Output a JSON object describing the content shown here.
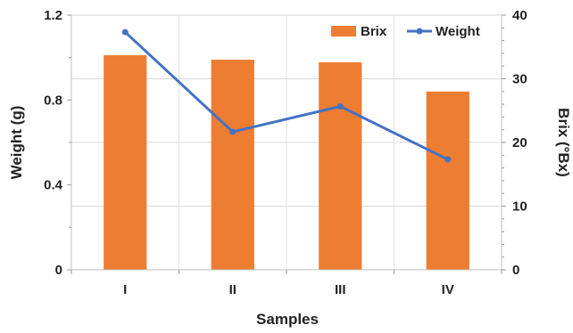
{
  "chart_data": {
    "type": "bar",
    "categories": [
      "I",
      "II",
      "III",
      "IV"
    ],
    "xlabel": "Samples",
    "grid": true,
    "legend_position": "top-right",
    "series": [
      {
        "name": "Brix",
        "type": "bar",
        "axis": "right",
        "color": "#ED7D31",
        "values": [
          33.7,
          33.0,
          32.6,
          28.0
        ]
      },
      {
        "name": "Weight",
        "type": "line",
        "axis": "left",
        "color": "#4472C4",
        "values": [
          1.12,
          0.65,
          0.77,
          0.52
        ]
      }
    ],
    "y_left": {
      "label": "Weight (g)",
      "ylim": [
        0,
        1.2
      ],
      "ticks": [
        "0",
        "0.4",
        "0.8",
        "1.2"
      ],
      "tick_values": [
        0,
        0.4,
        0.8,
        1.2
      ]
    },
    "y_right": {
      "label": "Brix (°Bx)",
      "ylim": [
        0,
        40
      ],
      "ticks": [
        "0",
        "10",
        "20",
        "30",
        "40"
      ],
      "tick_values": [
        0,
        10,
        20,
        30,
        40
      ]
    }
  }
}
